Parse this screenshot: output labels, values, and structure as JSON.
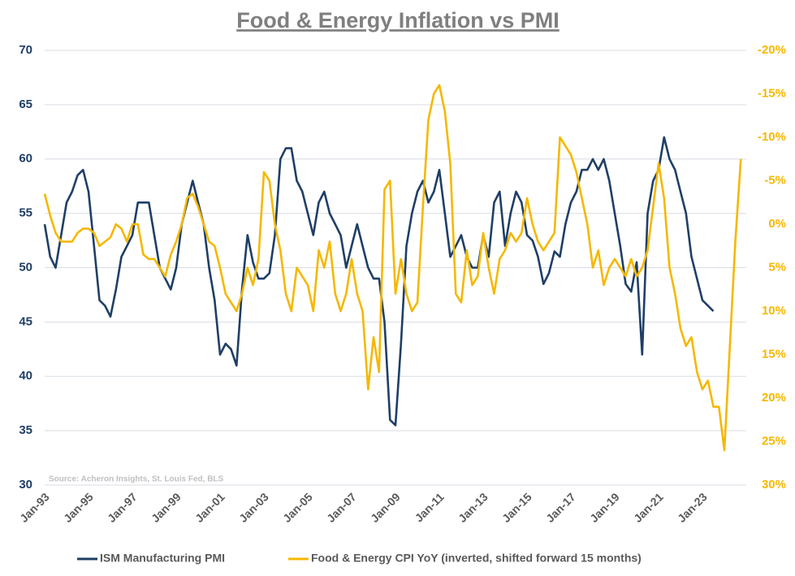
{
  "chart_data": {
    "type": "line",
    "title": "Food & Energy Inflation vs PMI",
    "source": "Source: Acheron Insights, St. Louis Fed, BLS",
    "x": [
      1993,
      1993.25,
      1993.5,
      1993.75,
      1994,
      1994.25,
      1994.5,
      1994.75,
      1995,
      1995.25,
      1995.5,
      1995.75,
      1996,
      1996.25,
      1996.5,
      1996.75,
      1997,
      1997.25,
      1997.5,
      1997.75,
      1998,
      1998.25,
      1998.5,
      1998.75,
      1999,
      1999.25,
      1999.5,
      1999.75,
      2000,
      2000.25,
      2000.5,
      2000.75,
      2001,
      2001.25,
      2001.5,
      2001.75,
      2002,
      2002.25,
      2002.5,
      2002.75,
      2003,
      2003.25,
      2003.5,
      2003.75,
      2004,
      2004.25,
      2004.5,
      2004.75,
      2005,
      2005.25,
      2005.5,
      2005.75,
      2006,
      2006.25,
      2006.5,
      2006.75,
      2007,
      2007.25,
      2007.5,
      2007.75,
      2008,
      2008.25,
      2008.5,
      2008.75,
      2009,
      2009.25,
      2009.5,
      2009.75,
      2010,
      2010.25,
      2010.5,
      2010.75,
      2011,
      2011.25,
      2011.5,
      2011.75,
      2012,
      2012.25,
      2012.5,
      2012.75,
      2013,
      2013.25,
      2013.5,
      2013.75,
      2014,
      2014.25,
      2014.5,
      2014.75,
      2015,
      2015.25,
      2015.5,
      2015.75,
      2016,
      2016.25,
      2016.5,
      2016.75,
      2017,
      2017.25,
      2017.5,
      2017.75,
      2018,
      2018.25,
      2018.5,
      2018.75,
      2019,
      2019.25,
      2019.5,
      2019.75,
      2020,
      2020.25,
      2020.5,
      2020.75,
      2021,
      2021.25,
      2021.5,
      2021.75,
      2022,
      2022.25,
      2022.5,
      2022.75,
      2023,
      2023.25,
      2023.5,
      2023.75,
      2024,
      2024.25,
      2024.5,
      2024.75
    ],
    "series": [
      {
        "name": "ISM Manufacturing PMI",
        "color": "#1f3f66",
        "values": [
          54,
          51,
          50,
          53,
          56,
          57,
          58.5,
          59,
          57,
          52,
          47,
          46.5,
          45.5,
          48,
          51,
          52,
          53,
          56,
          56,
          56,
          53,
          50,
          49,
          48,
          50,
          54,
          56,
          58,
          56,
          54,
          50,
          47,
          42,
          43,
          42.5,
          41,
          48,
          53,
          50.5,
          49,
          49,
          49.5,
          53,
          60,
          61,
          61,
          58,
          57,
          55,
          53,
          56,
          57,
          55,
          54,
          53,
          50,
          52,
          54,
          52,
          50,
          49,
          49,
          45,
          36,
          35.5,
          43,
          52,
          55,
          57,
          58,
          56,
          57,
          59,
          55,
          51,
          52,
          53,
          51,
          50,
          50,
          53,
          51,
          56,
          57,
          52,
          55,
          57,
          56,
          53,
          52.5,
          51,
          48.5,
          49.5,
          51.5,
          51,
          54,
          56,
          57,
          59,
          59,
          60,
          59,
          60,
          58,
          55,
          52,
          48.5,
          47.8,
          50.5,
          42,
          55,
          58,
          59,
          62,
          60,
          59,
          57,
          55,
          51,
          49,
          47,
          46.5,
          46,
          null,
          null,
          null,
          null,
          null
        ]
      },
      {
        "name": "Food & Energy CPI YoY (inverted, shifted forward 15 months)",
        "color": "#f5b800",
        "axis": "y2",
        "values": [
          -3.5,
          -1,
          1,
          2,
          2,
          2,
          1,
          0.5,
          0.5,
          1,
          2.5,
          2,
          1.5,
          0,
          0.5,
          2,
          0,
          0,
          3.5,
          4,
          4,
          5,
          6,
          3.5,
          2,
          0,
          -3,
          -3.5,
          -2,
          0,
          2,
          2.5,
          5,
          8,
          9,
          10,
          8,
          5,
          7,
          4,
          -6,
          -5,
          0,
          3,
          8,
          10,
          5,
          6,
          7,
          10,
          3,
          5,
          2,
          8,
          10,
          8,
          4,
          8,
          10,
          19,
          13,
          17,
          -4,
          -5,
          8,
          4,
          8,
          10,
          9,
          -2,
          -12,
          -15,
          -16,
          -13,
          -7,
          8,
          9,
          3,
          7,
          6,
          1,
          5,
          8,
          4,
          3,
          1,
          2,
          1,
          -3,
          0,
          2,
          3,
          2,
          1,
          -10,
          -9,
          -8,
          -6,
          -3,
          0,
          5,
          3,
          7,
          5,
          4,
          5,
          6,
          4,
          6,
          5,
          3,
          -2,
          -7,
          -3,
          5,
          8,
          12,
          14,
          13,
          17,
          19,
          18,
          21,
          21,
          26,
          14,
          2,
          -7.5
        ]
      }
    ],
    "xlim": [
      1993,
      2025
    ],
    "xticks": [
      {
        "value": 1993,
        "label": "Jan-93"
      },
      {
        "value": 1995,
        "label": "Jan-95"
      },
      {
        "value": 1997,
        "label": "Jan-97"
      },
      {
        "value": 1999,
        "label": "Jan-99"
      },
      {
        "value": 2001,
        "label": "Jan-01"
      },
      {
        "value": 2003,
        "label": "Jan-03"
      },
      {
        "value": 2005,
        "label": "Jan-05"
      },
      {
        "value": 2007,
        "label": "Jan-07"
      },
      {
        "value": 2009,
        "label": "Jan-09"
      },
      {
        "value": 2011,
        "label": "Jan-11"
      },
      {
        "value": 2013,
        "label": "Jan-13"
      },
      {
        "value": 2015,
        "label": "Jan-15"
      },
      {
        "value": 2017,
        "label": "Jan-17"
      },
      {
        "value": 2019,
        "label": "Jan-19"
      },
      {
        "value": 2021,
        "label": "Jan-21"
      },
      {
        "value": 2023,
        "label": "Jan-23"
      }
    ],
    "ylim": [
      30,
      70
    ],
    "yticks": [
      30,
      35,
      40,
      45,
      50,
      55,
      60,
      65,
      70
    ],
    "y2lim": [
      30,
      -20
    ],
    "y2ticks": [
      {
        "value": -20,
        "label": "-20%"
      },
      {
        "value": -15,
        "label": "-15%"
      },
      {
        "value": -10,
        "label": "-10%"
      },
      {
        "value": -5,
        "label": "-5%"
      },
      {
        "value": 0,
        "label": "0%"
      },
      {
        "value": 5,
        "label": "5%"
      },
      {
        "value": 10,
        "label": "10%"
      },
      {
        "value": 15,
        "label": "15%"
      },
      {
        "value": 20,
        "label": "20%"
      },
      {
        "value": 25,
        "label": "25%"
      },
      {
        "value": 30,
        "label": "30%"
      }
    ],
    "grid": true
  }
}
